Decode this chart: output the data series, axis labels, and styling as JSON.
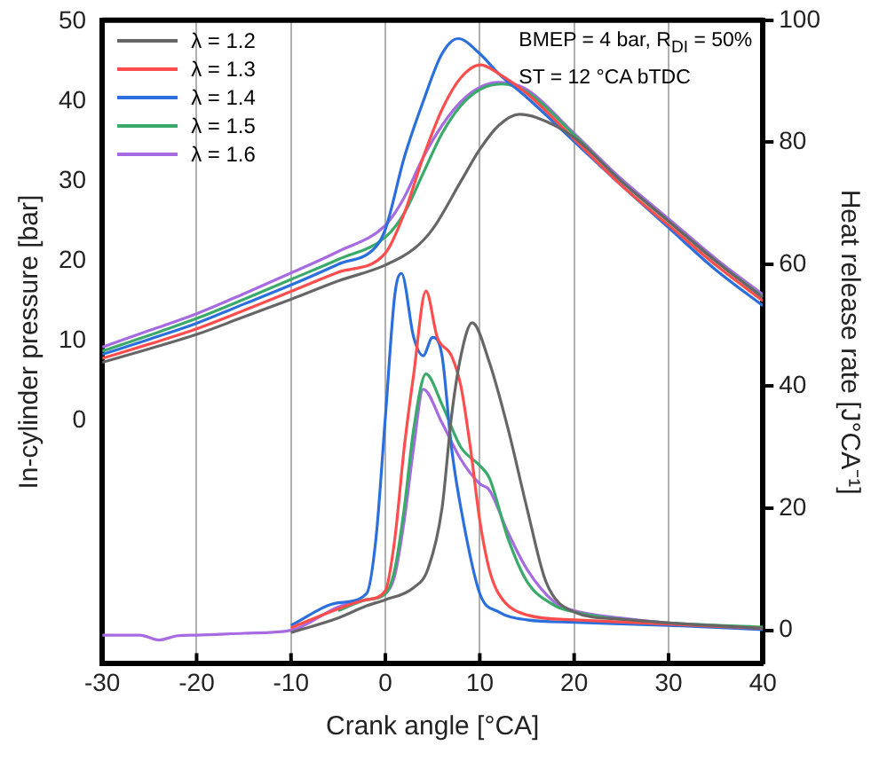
{
  "chart_data": {
    "type": "line",
    "xlabel": "Crank angle [°CA]",
    "ylabel": "In-cylinder pressure [bar]",
    "y2label": "Heat release rate [J°CA⁻¹]",
    "annotations": [
      "BMEP = 4 bar, R$_{DI}$ = 50%",
      "ST = 12 °CA bTDC"
    ],
    "xlim": [
      -30,
      40
    ],
    "xticks": [
      -30,
      -20,
      -10,
      0,
      10,
      20,
      30,
      40
    ],
    "ylim": [
      -30.5,
      50.2
    ],
    "yticks": [
      0,
      10,
      20,
      30,
      40,
      50
    ],
    "y2lim": [
      -5.5,
      100
    ],
    "y2ticks": [
      0,
      20,
      40,
      60,
      80,
      100
    ],
    "grid": "x",
    "legend": "top left",
    "marker": "none",
    "line_style": "solid",
    "series": [
      {
        "name": "λ = 1.2",
        "color": "#666666",
        "x": [
          -30,
          -25,
          -20,
          -15,
          -10,
          -5,
          0,
          3,
          5,
          8,
          10,
          12,
          14.2,
          16,
          20,
          25,
          30,
          35,
          40
        ],
        "values": [
          7.3,
          9,
          10.8,
          13,
          15.2,
          17.5,
          19.5,
          21.5,
          24,
          30,
          34,
          37,
          38.4,
          38,
          35.5,
          30,
          25,
          20,
          15.4
        ]
      },
      {
        "name": "λ = 1.3",
        "color": "#ff4d4d",
        "x": [
          -30,
          -25,
          -20,
          -15,
          -10,
          -5,
          0,
          2,
          4,
          6,
          8,
          10.1,
          12,
          15,
          20,
          25,
          30,
          35,
          40
        ],
        "values": [
          7.8,
          9.6,
          11.5,
          13.8,
          16.2,
          18.6,
          21,
          26,
          33,
          39,
          43,
          44.6,
          43.5,
          41,
          35.3,
          29.5,
          24.5,
          19.5,
          15
        ]
      },
      {
        "name": "λ = 1.4",
        "color": "#2a6fdb",
        "x": [
          -30,
          -25,
          -20,
          -15,
          -10,
          -5,
          -1,
          0,
          2,
          4,
          6,
          7.7,
          10,
          12,
          15,
          20,
          25,
          30,
          35,
          40
        ],
        "values": [
          8.3,
          10.2,
          12.2,
          14.6,
          17,
          19.6,
          21.8,
          24,
          33,
          40,
          46,
          47.9,
          46,
          43.5,
          40.5,
          35,
          29.5,
          24.2,
          18.9,
          14.4
        ]
      },
      {
        "name": "λ = 1.5",
        "color": "#3aaa6a",
        "x": [
          -30,
          -25,
          -20,
          -15,
          -10,
          -5,
          0,
          2,
          4,
          6,
          8,
          10,
          12.3,
          15,
          20,
          25,
          30,
          35,
          40
        ],
        "values": [
          8.7,
          10.7,
          12.8,
          15.2,
          17.7,
          20.2,
          23,
          26,
          31,
          36,
          39.5,
          41.5,
          42.2,
          41.2,
          35.8,
          30,
          25,
          20,
          15.5
        ]
      },
      {
        "name": "λ = 1.6",
        "color": "#a66be0",
        "x": [
          -30,
          -25,
          -20,
          -15,
          -10,
          -5,
          0,
          2,
          4,
          6,
          8,
          10,
          12,
          15,
          20,
          25,
          30,
          35,
          40
        ],
        "values": [
          9.2,
          11.3,
          13.4,
          15.9,
          18.5,
          21.2,
          24.5,
          28,
          33,
          37,
          40,
          41.8,
          42.4,
          41.5,
          36,
          30.3,
          25.3,
          20.3,
          15.8
        ]
      },
      {
        "color": "#666666",
        "axis": "y2",
        "x": [
          -10,
          -5,
          -2,
          0,
          3,
          4.5,
          6,
          7,
          8,
          9.2,
          11,
          13,
          15,
          17,
          20,
          25,
          30,
          40
        ],
        "values": [
          -0.4,
          2,
          4,
          5,
          7,
          10,
          20,
          35,
          45,
          50.4,
          44,
          33,
          20,
          8,
          3,
          1.8,
          1.2,
          0.3
        ]
      },
      {
        "color": "#ff4d4d",
        "axis": "y2",
        "x": [
          -10,
          -5,
          -2,
          0,
          1,
          2,
          3,
          4.3,
          5.5,
          7,
          8,
          9,
          10,
          11,
          12,
          15,
          20,
          30,
          40
        ],
        "values": [
          0.4,
          3.5,
          5,
          6.5,
          15,
          30,
          42,
          55.6,
          48,
          45,
          40,
          30,
          18,
          10,
          6,
          2.5,
          1.7,
          1,
          0.3
        ]
      },
      {
        "color": "#2a6fdb",
        "axis": "y2",
        "x": [
          -10,
          -5,
          -2,
          -1,
          0,
          1,
          1.7,
          3,
          4,
          5,
          6,
          7,
          8,
          10,
          12,
          15,
          20,
          30,
          40
        ],
        "values": [
          0.8,
          4.5,
          6,
          15,
          35,
          55,
          58.5,
          48,
          45,
          48,
          45,
          30,
          20,
          6,
          3,
          1.7,
          1.3,
          0.8,
          0.1
        ]
      },
      {
        "color": "#3aaa6a",
        "axis": "y2",
        "x": [
          -5,
          -2,
          0,
          1,
          2,
          3,
          4.3,
          6,
          8,
          10,
          11,
          13,
          15,
          18,
          20,
          25,
          30,
          40
        ],
        "values": [
          3.2,
          5,
          6,
          10,
          20,
          33,
          42,
          37,
          30,
          27,
          25,
          15,
          8,
          4,
          3,
          1.8,
          1.2,
          0.5
        ]
      },
      {
        "color": "#a66be0",
        "axis": "y2",
        "x": [
          -30,
          -26,
          -24,
          -22,
          -20,
          -15,
          -10,
          -5,
          -2,
          0,
          1,
          2,
          3,
          4,
          6,
          8,
          10,
          11,
          13,
          15,
          18,
          20,
          25,
          30,
          40
        ],
        "values": [
          -0.8,
          -0.8,
          -1.6,
          -0.9,
          -0.8,
          -0.5,
          0,
          3.8,
          5,
          6,
          9,
          18,
          30,
          39.5,
          34,
          28,
          24,
          23,
          16,
          10,
          4.5,
          3.2,
          2,
          1.2,
          0.3
        ]
      }
    ]
  }
}
